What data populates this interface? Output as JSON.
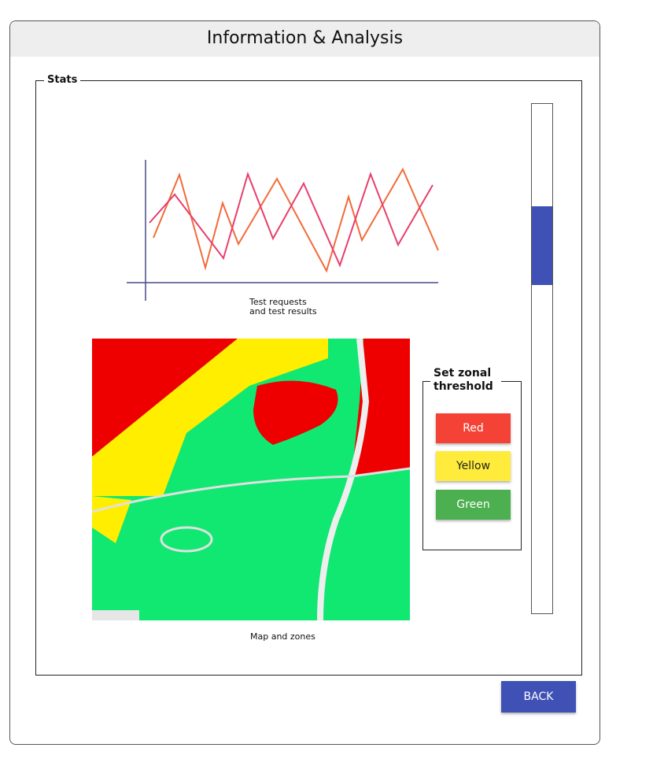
{
  "window": {
    "title": "Information & Analysis"
  },
  "stats": {
    "legend": "Stats",
    "chart_caption": "Test requests and test results",
    "map_caption": "Map and zones",
    "threshold": {
      "legend": "Set zonal threshold",
      "buttons": [
        "Red",
        "Yellow",
        "Green"
      ]
    }
  },
  "footer": {
    "back_button": "BACK"
  }
}
